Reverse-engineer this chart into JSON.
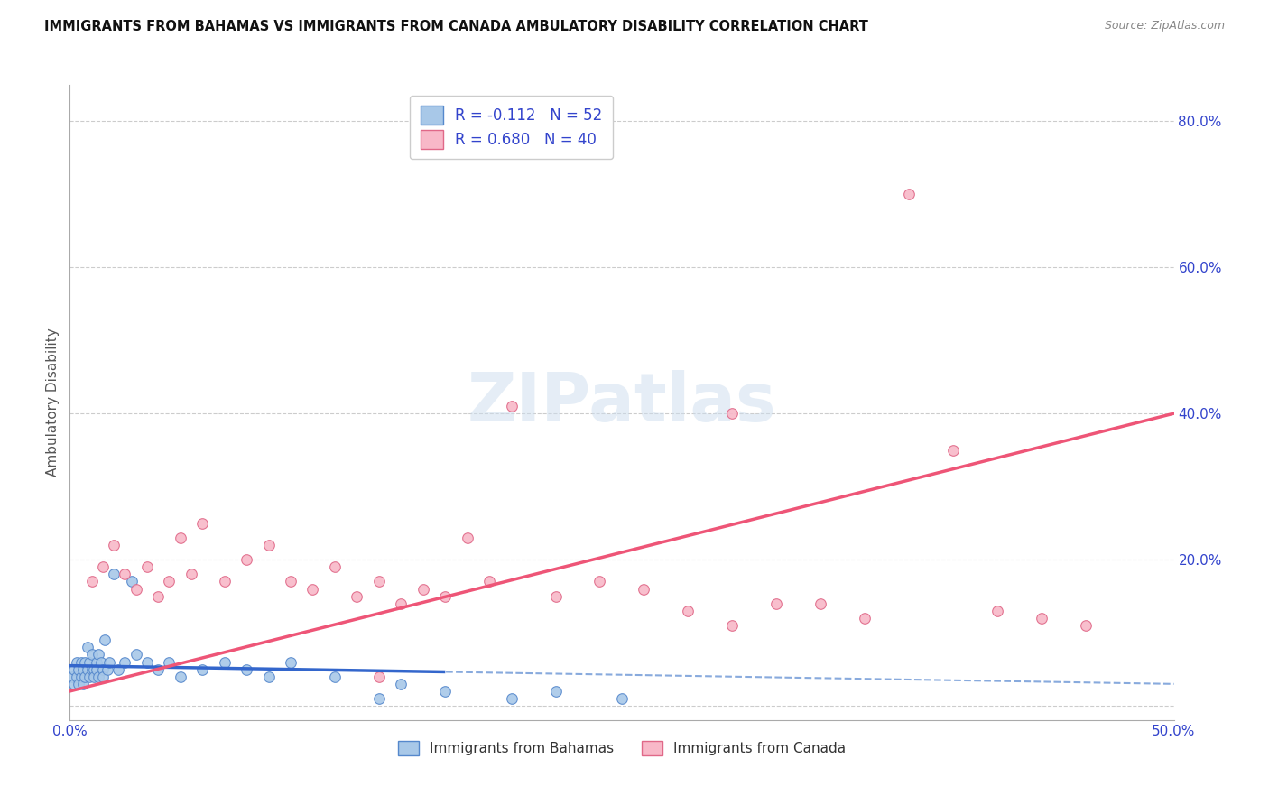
{
  "title": "IMMIGRANTS FROM BAHAMAS VS IMMIGRANTS FROM CANADA AMBULATORY DISABILITY CORRELATION CHART",
  "source": "Source: ZipAtlas.com",
  "ylabel": "Ambulatory Disability",
  "xlim": [
    0.0,
    0.5
  ],
  "ylim": [
    -0.02,
    0.85
  ],
  "yticks": [
    0.0,
    0.2,
    0.4,
    0.6,
    0.8
  ],
  "xticks": [
    0.0,
    0.1,
    0.2,
    0.3,
    0.4,
    0.5
  ],
  "background_color": "#ffffff",
  "grid_color": "#cccccc",
  "bahamas_x": [
    0.001,
    0.002,
    0.002,
    0.003,
    0.003,
    0.004,
    0.004,
    0.005,
    0.005,
    0.006,
    0.006,
    0.007,
    0.007,
    0.008,
    0.008,
    0.009,
    0.009,
    0.01,
    0.01,
    0.011,
    0.011,
    0.012,
    0.012,
    0.013,
    0.013,
    0.014,
    0.015,
    0.015,
    0.016,
    0.017,
    0.018,
    0.02,
    0.022,
    0.025,
    0.028,
    0.03,
    0.035,
    0.04,
    0.045,
    0.05,
    0.06,
    0.07,
    0.08,
    0.09,
    0.1,
    0.12,
    0.14,
    0.15,
    0.17,
    0.2,
    0.22,
    0.25
  ],
  "bahamas_y": [
    0.04,
    0.05,
    0.03,
    0.06,
    0.04,
    0.05,
    0.03,
    0.06,
    0.04,
    0.05,
    0.03,
    0.06,
    0.04,
    0.08,
    0.05,
    0.06,
    0.04,
    0.07,
    0.05,
    0.05,
    0.04,
    0.06,
    0.05,
    0.07,
    0.04,
    0.06,
    0.05,
    0.04,
    0.09,
    0.05,
    0.06,
    0.18,
    0.05,
    0.06,
    0.17,
    0.07,
    0.06,
    0.05,
    0.06,
    0.04,
    0.05,
    0.06,
    0.05,
    0.04,
    0.06,
    0.04,
    0.01,
    0.03,
    0.02,
    0.01,
    0.02,
    0.01
  ],
  "canada_x": [
    0.01,
    0.015,
    0.02,
    0.025,
    0.03,
    0.035,
    0.04,
    0.045,
    0.05,
    0.055,
    0.06,
    0.07,
    0.08,
    0.09,
    0.1,
    0.11,
    0.12,
    0.13,
    0.14,
    0.15,
    0.16,
    0.17,
    0.18,
    0.19,
    0.2,
    0.22,
    0.24,
    0.26,
    0.28,
    0.3,
    0.32,
    0.34,
    0.36,
    0.38,
    0.4,
    0.42,
    0.44,
    0.46,
    0.3,
    0.14
  ],
  "canada_y": [
    0.17,
    0.19,
    0.22,
    0.18,
    0.16,
    0.19,
    0.15,
    0.17,
    0.23,
    0.18,
    0.25,
    0.17,
    0.2,
    0.22,
    0.17,
    0.16,
    0.19,
    0.15,
    0.17,
    0.14,
    0.16,
    0.15,
    0.23,
    0.17,
    0.41,
    0.15,
    0.17,
    0.16,
    0.13,
    0.11,
    0.14,
    0.14,
    0.12,
    0.7,
    0.35,
    0.13,
    0.12,
    0.11,
    0.4,
    0.04
  ],
  "bahamas_color": "#a8c8e8",
  "bahamas_edge_color": "#5588cc",
  "canada_color": "#f8b8c8",
  "canada_edge_color": "#e06888",
  "trend_bahamas_solid_color": "#3366cc",
  "trend_bahamas_dash_color": "#88aadd",
  "trend_canada_color": "#ee5577",
  "marker_size": 70,
  "bahamas_R": -0.112,
  "bahamas_N": 52,
  "canada_R": 0.68,
  "canada_N": 40,
  "legend1_label1": "R = -0.112   N = 52",
  "legend1_label2": "R = 0.680   N = 40",
  "legend2_label1": "Immigrants from Bahamas",
  "legend2_label2": "Immigrants from Canada"
}
